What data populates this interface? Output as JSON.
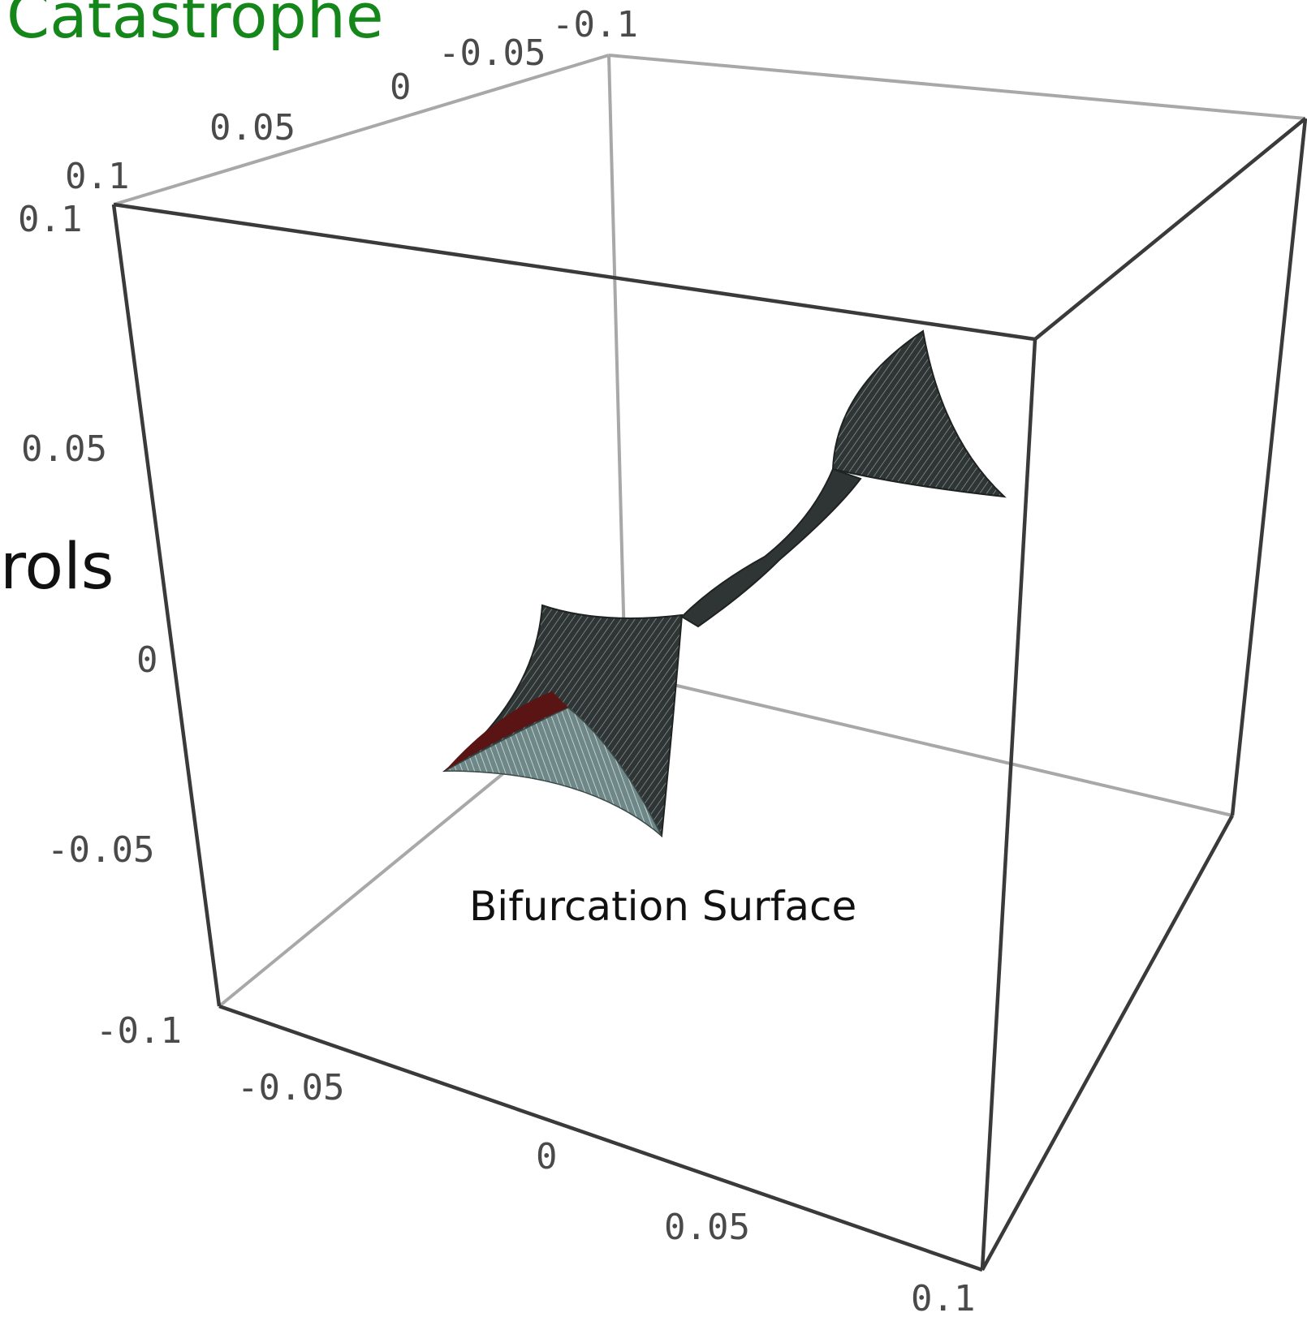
{
  "title": "Catastrophe",
  "partial_label": "rols",
  "caption": "Bifurcation Surface",
  "colors": {
    "title": "#14861a",
    "box_front": "#3a3a3a",
    "box_back": "#a8a8a8",
    "surface_dark": "#2f3534",
    "surface_light": "#a9c4c4",
    "surface_inner": "#5a1414"
  },
  "axis_ticks": {
    "top_axis": [
      "-0.1",
      "-0.05",
      "0",
      "0.05",
      "0.1"
    ],
    "vertical_axis": [
      "0.1",
      "0.05",
      "0",
      "-0.05",
      "-0.1"
    ],
    "bottom_axis": [
      "-0.05",
      "0",
      "0.05",
      "0.1"
    ]
  },
  "chart_data": {
    "type": "3d-surface",
    "title": "",
    "series": [],
    "x_ticks": [
      -0.1,
      -0.05,
      0,
      0.05,
      0.1
    ],
    "y_ticks": [
      -0.1,
      -0.05,
      0,
      0.05,
      0.1
    ],
    "z_ticks": [
      -0.1,
      -0.05,
      0,
      0.05,
      0.1
    ],
    "x_range": [
      -0.1,
      0.1
    ],
    "y_range": [
      -0.1,
      0.1
    ],
    "z_range": [
      -0.1,
      0.1
    ],
    "annotations": [
      "Bifurcation Surface"
    ],
    "grid": false,
    "box": true
  }
}
